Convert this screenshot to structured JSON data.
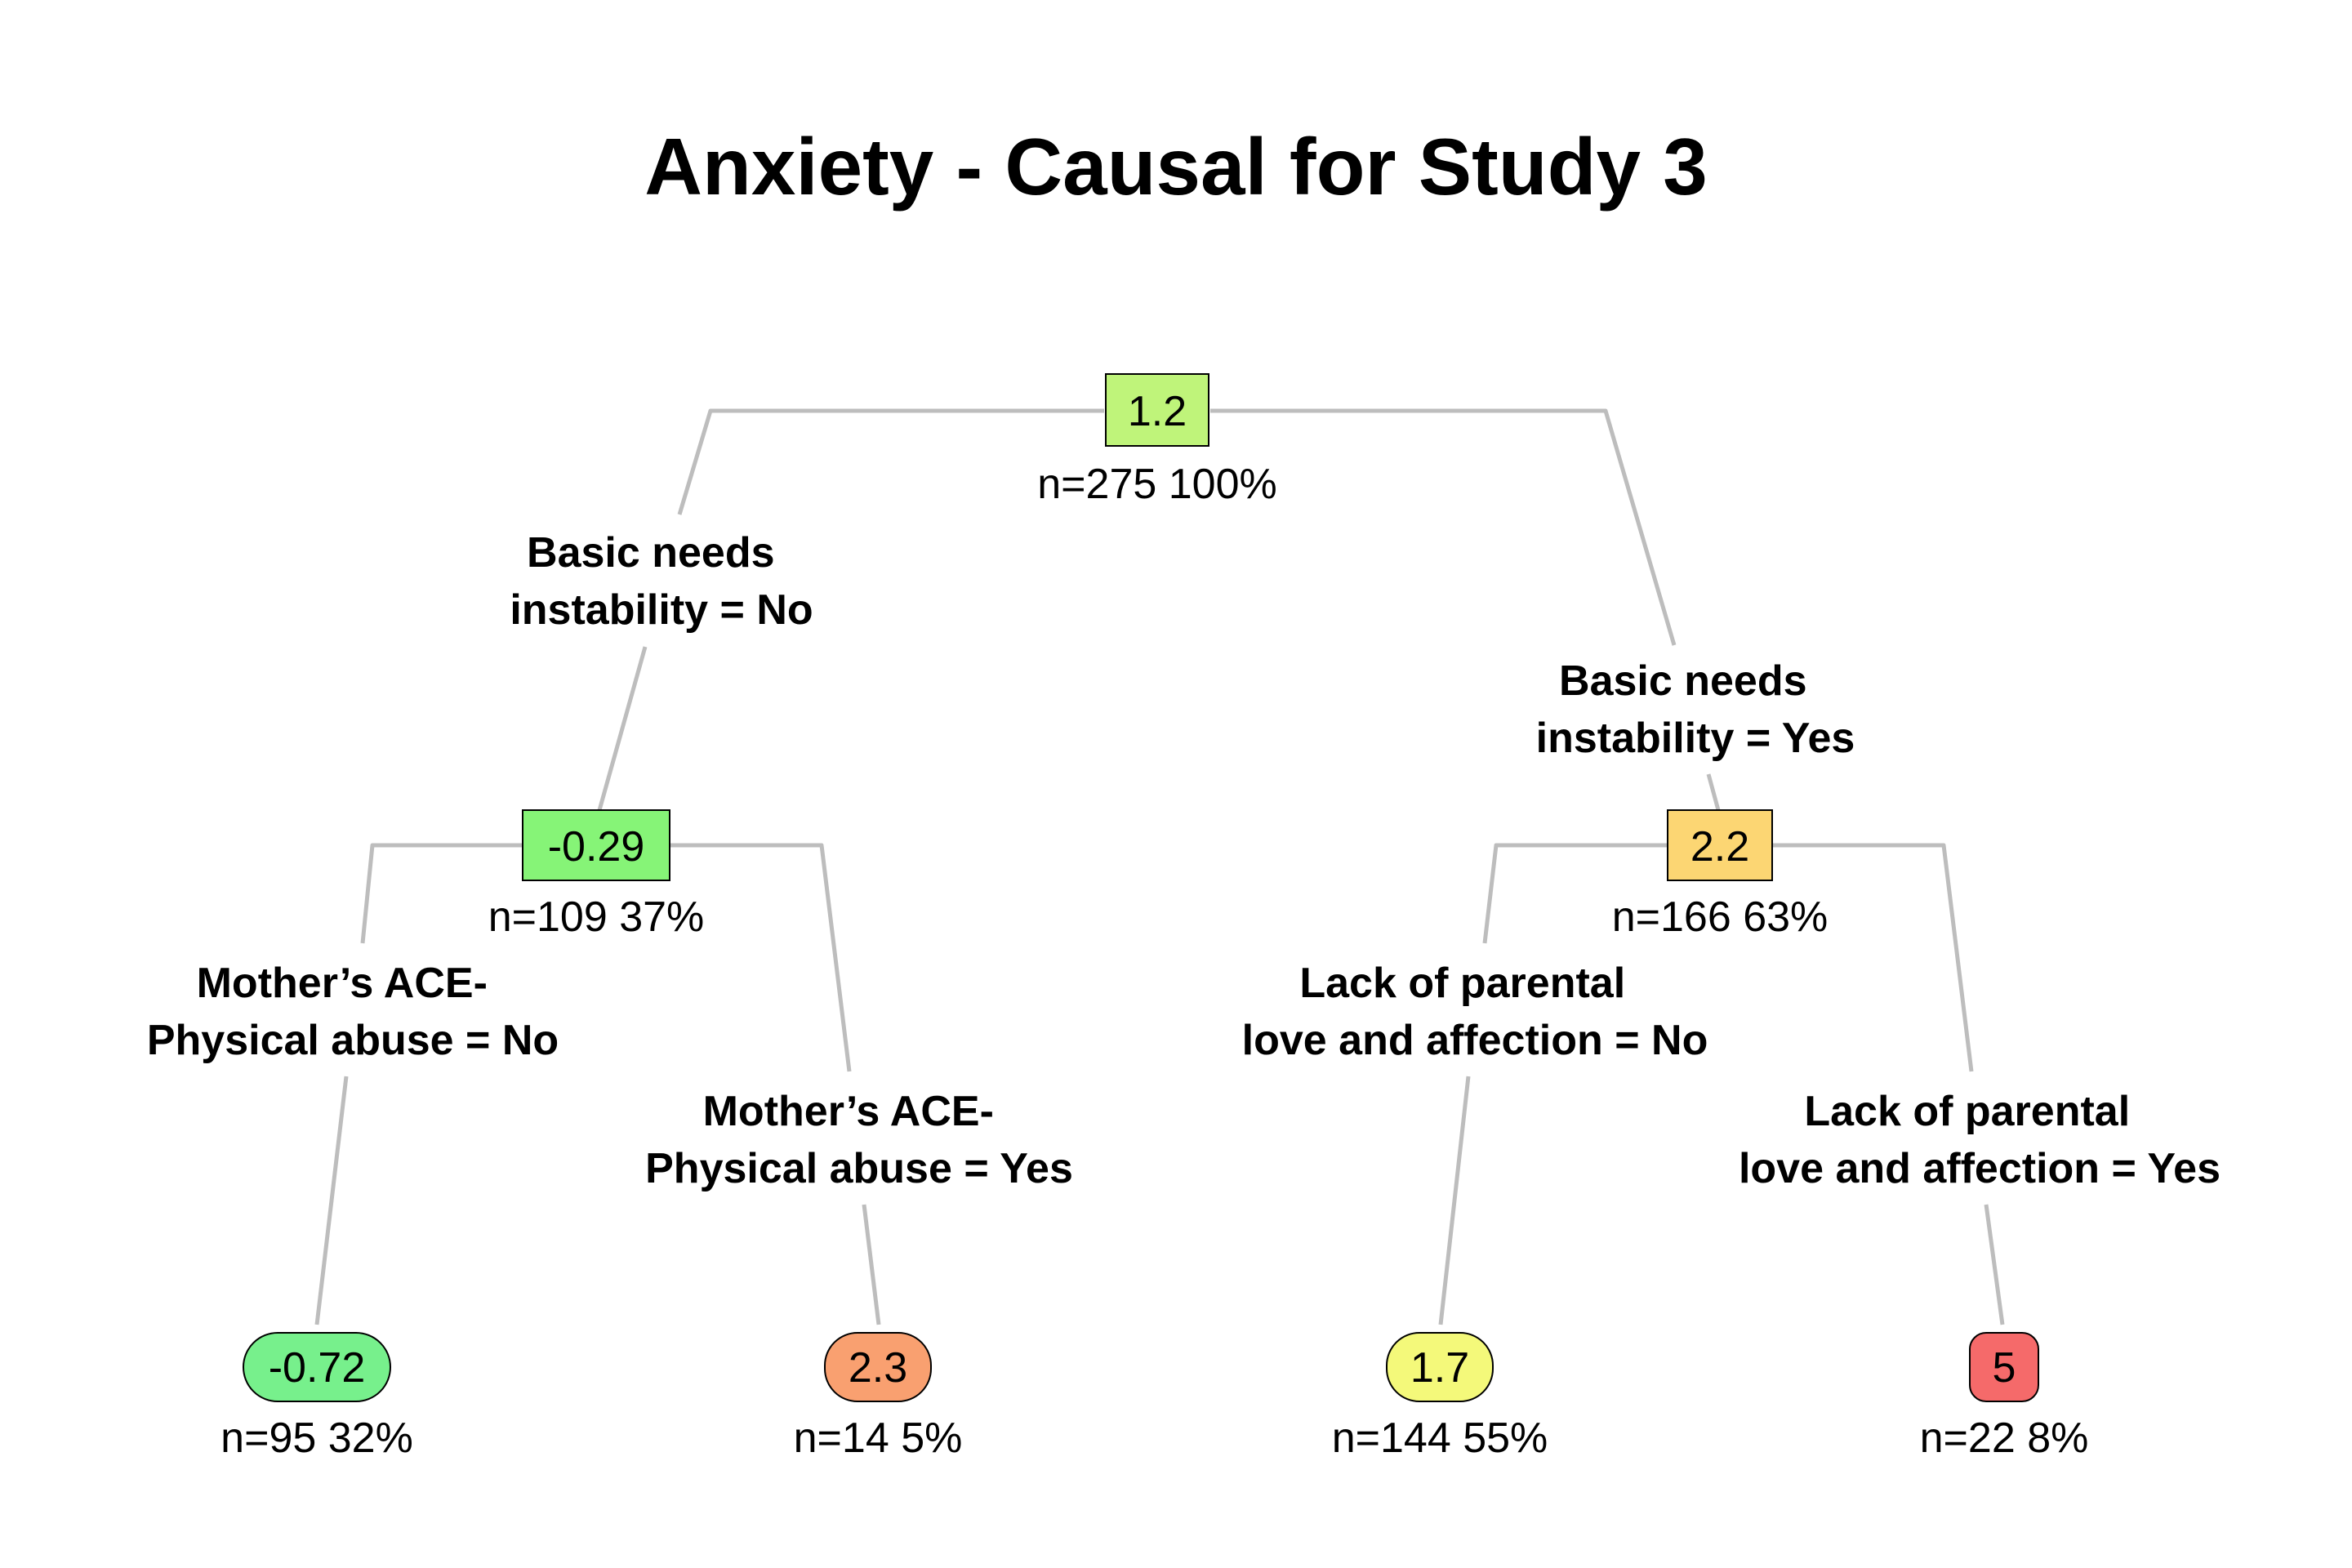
{
  "title": "Anxiety - Causal for Study 3",
  "nodes": {
    "root": {
      "value": "1.2",
      "stats": "n=275  100%",
      "color": "#bff47a"
    },
    "left": {
      "value": "-0.29",
      "stats": "n=109  37%",
      "color": "#86f477"
    },
    "right": {
      "value": "2.2",
      "stats": "n=166  63%",
      "color": "#fcd673"
    },
    "leaf_ll": {
      "value": "-0.72",
      "stats": "n=95  32%",
      "color": "#77f08c"
    },
    "leaf_lr": {
      "value": "2.3",
      "stats": "n=14  5%",
      "color": "#f9a070"
    },
    "leaf_rl": {
      "value": "1.7",
      "stats": "n=144  55%",
      "color": "#f4f97a"
    },
    "leaf_rr": {
      "value": "5",
      "stats": "n=22  8%",
      "color": "#f56a6a"
    }
  },
  "splits": {
    "root_left": [
      "Basic needs",
      "instability = No"
    ],
    "root_right": [
      "Basic needs",
      "instability = Yes"
    ],
    "left_left": [
      "Mother’s ACE-",
      "Physical abuse = No"
    ],
    "left_right": [
      "Mother’s ACE-",
      "Physical abuse = Yes"
    ],
    "right_left": [
      "Lack of parental",
      "love and affection = No"
    ],
    "right_right": [
      "Lack of parental",
      "love and affection = Yes"
    ]
  }
}
